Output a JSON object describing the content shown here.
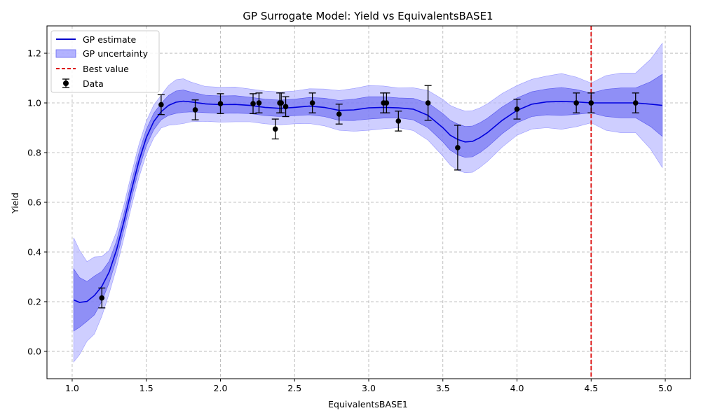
{
  "chart_data": {
    "type": "line",
    "title": "GP Surrogate Model: Yield vs EquivalentsBASE1",
    "xlabel": "EquivalentsBASE1",
    "ylabel": "Yield",
    "xlim": [
      0.83,
      5.17
    ],
    "ylim": [
      -0.11,
      1.31
    ],
    "xticks": [
      1.0,
      1.5,
      2.0,
      2.5,
      3.0,
      3.5,
      4.0,
      4.5,
      5.0
    ],
    "xtick_labels": [
      "1.0",
      "1.5",
      "2.0",
      "2.5",
      "3.0",
      "3.5",
      "4.0",
      "4.5",
      "5.0"
    ],
    "yticks": [
      0.0,
      0.2,
      0.4,
      0.6,
      0.8,
      1.0,
      1.2
    ],
    "ytick_labels": [
      "0.0",
      "0.2",
      "0.4",
      "0.6",
      "0.8",
      "1.0",
      "1.2"
    ],
    "grid": true,
    "legend_position": "top-left",
    "legend": [
      {
        "label": "GP estimate",
        "kind": "line",
        "color": "#0000cc"
      },
      {
        "label": "GP uncertainty",
        "kind": "patch",
        "color": "#8080ff"
      },
      {
        "label": "Best value",
        "kind": "dashed",
        "color": "#dd0000"
      },
      {
        "label": "Data",
        "kind": "errorbar",
        "color": "#000000"
      }
    ],
    "colors": {
      "mean": "#0000dd",
      "band_inner": "#6666f0",
      "band_outer": "#b3b3ff",
      "best": "#dd1111",
      "data": "#000000",
      "grid": "#b0b0b0"
    },
    "gp_curve": {
      "x": [
        1.01,
        1.05,
        1.1,
        1.15,
        1.2,
        1.25,
        1.3,
        1.35,
        1.4,
        1.45,
        1.5,
        1.55,
        1.6,
        1.65,
        1.7,
        1.75,
        1.8,
        1.9,
        2.0,
        2.1,
        2.2,
        2.3,
        2.4,
        2.5,
        2.6,
        2.7,
        2.8,
        2.9,
        3.0,
        3.1,
        3.2,
        3.3,
        3.4,
        3.5,
        3.55,
        3.6,
        3.65,
        3.7,
        3.75,
        3.8,
        3.9,
        4.0,
        4.1,
        4.2,
        4.3,
        4.4,
        4.5,
        4.6,
        4.7,
        4.8,
        4.9,
        4.98
      ],
      "mean": [
        0.207,
        0.197,
        0.201,
        0.225,
        0.262,
        0.32,
        0.41,
        0.525,
        0.65,
        0.765,
        0.86,
        0.925,
        0.965,
        0.99,
        1.003,
        1.007,
        1.004,
        0.996,
        0.993,
        0.994,
        0.99,
        0.982,
        0.978,
        0.982,
        0.987,
        0.982,
        0.97,
        0.972,
        0.98,
        0.982,
        0.98,
        0.975,
        0.95,
        0.9,
        0.87,
        0.853,
        0.843,
        0.845,
        0.86,
        0.88,
        0.93,
        0.97,
        0.995,
        1.004,
        1.006,
        1.004,
        1.0,
        1.0,
        1.0,
        1.0,
        0.995,
        0.99
      ],
      "inner": [
        0.125,
        0.1,
        0.08,
        0.078,
        0.06,
        0.043,
        0.036,
        0.033,
        0.033,
        0.033,
        0.033,
        0.033,
        0.033,
        0.04,
        0.045,
        0.045,
        0.04,
        0.035,
        0.035,
        0.035,
        0.033,
        0.033,
        0.033,
        0.033,
        0.035,
        0.037,
        0.04,
        0.043,
        0.045,
        0.043,
        0.04,
        0.043,
        0.05,
        0.057,
        0.06,
        0.062,
        0.062,
        0.062,
        0.06,
        0.058,
        0.054,
        0.05,
        0.05,
        0.052,
        0.056,
        0.05,
        0.04,
        0.055,
        0.06,
        0.06,
        0.09,
        0.125
      ],
      "outer": [
        0.25,
        0.21,
        0.16,
        0.155,
        0.12,
        0.086,
        0.072,
        0.066,
        0.066,
        0.066,
        0.066,
        0.066,
        0.066,
        0.08,
        0.09,
        0.09,
        0.08,
        0.07,
        0.07,
        0.07,
        0.066,
        0.066,
        0.066,
        0.066,
        0.07,
        0.074,
        0.08,
        0.086,
        0.09,
        0.086,
        0.08,
        0.086,
        0.1,
        0.114,
        0.12,
        0.124,
        0.124,
        0.124,
        0.12,
        0.116,
        0.108,
        0.1,
        0.1,
        0.104,
        0.112,
        0.1,
        0.08,
        0.11,
        0.12,
        0.12,
        0.18,
        0.25
      ]
    },
    "data_points": {
      "x": [
        1.2,
        1.6,
        1.83,
        2.0,
        2.22,
        2.26,
        2.37,
        2.4,
        2.41,
        2.44,
        2.62,
        2.8,
        3.1,
        3.12,
        3.2,
        3.4,
        3.6,
        4.0,
        4.4,
        4.5,
        4.8
      ],
      "y": [
        0.215,
        0.993,
        0.972,
        0.997,
        0.997,
        1.0,
        0.895,
        1.0,
        1.0,
        0.985,
        1.0,
        0.955,
        1.0,
        1.0,
        0.927,
        1.0,
        0.82,
        0.975,
        1.0,
        1.0,
        1.0
      ],
      "err": [
        0.04,
        0.04,
        0.04,
        0.04,
        0.04,
        0.04,
        0.04,
        0.04,
        0.04,
        0.04,
        0.04,
        0.04,
        0.04,
        0.04,
        0.04,
        0.07,
        0.09,
        0.04,
        0.04,
        0.04,
        0.04
      ]
    },
    "best_value_x": 4.5
  }
}
